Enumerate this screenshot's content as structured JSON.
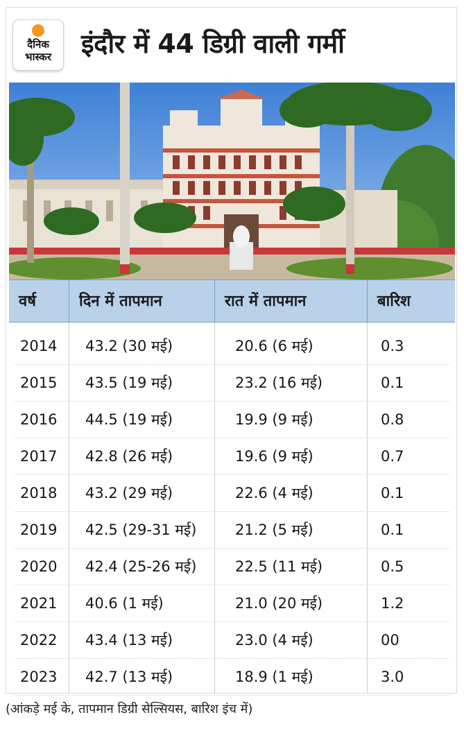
{
  "header": {
    "logo_text_line1": "दैनिक",
    "logo_text_line2": "भास्कर",
    "title": "इंदौर में 44 डिग्री वाली गर्मी"
  },
  "colors": {
    "header_band": "#b9d2ea",
    "logo_sun": "#f39a1b",
    "sky": "#4f8fd8"
  },
  "table": {
    "headers": [
      "वर्ष",
      "दिन में तापमान",
      "रात में तापमान",
      "बारिश"
    ],
    "rows": [
      [
        "2014",
        "43.2 (30 मई)",
        "20.6 (6 मई)",
        "0.3"
      ],
      [
        "2015",
        "43.5 (19 मई)",
        "23.2 (16 मई)",
        "0.1"
      ],
      [
        "2016",
        "44.5 (19 मई)",
        "19.9 (9 मई)",
        "0.8"
      ],
      [
        "2017",
        "42.8 (26 मई)",
        "19.6 (9 मई)",
        "0.7"
      ],
      [
        "2018",
        "43.2 (29 मई)",
        "22.6 (4 मई)",
        "0.1"
      ],
      [
        "2019",
        "42.5 (29-31 मई)",
        "21.2 (5 मई)",
        "0.1"
      ],
      [
        "2020",
        " 42.4 (25-26 मई)",
        "22.5 (11 मई)",
        "0.5"
      ],
      [
        "2021",
        "40.6 (1 मई)",
        "21.0 (20 मई)",
        "1.2"
      ],
      [
        "2022",
        "43.4 (13 मई)",
        "23.0 (4 मई)",
        "00"
      ],
      [
        "2023",
        "42.7 (13 मई)",
        "18.9 (1 मई)",
        "3.0"
      ]
    ]
  },
  "footnote": "(आंकड़े मई के, तापमान डिग्री सेल्सियस, बारिश इंच में)"
}
